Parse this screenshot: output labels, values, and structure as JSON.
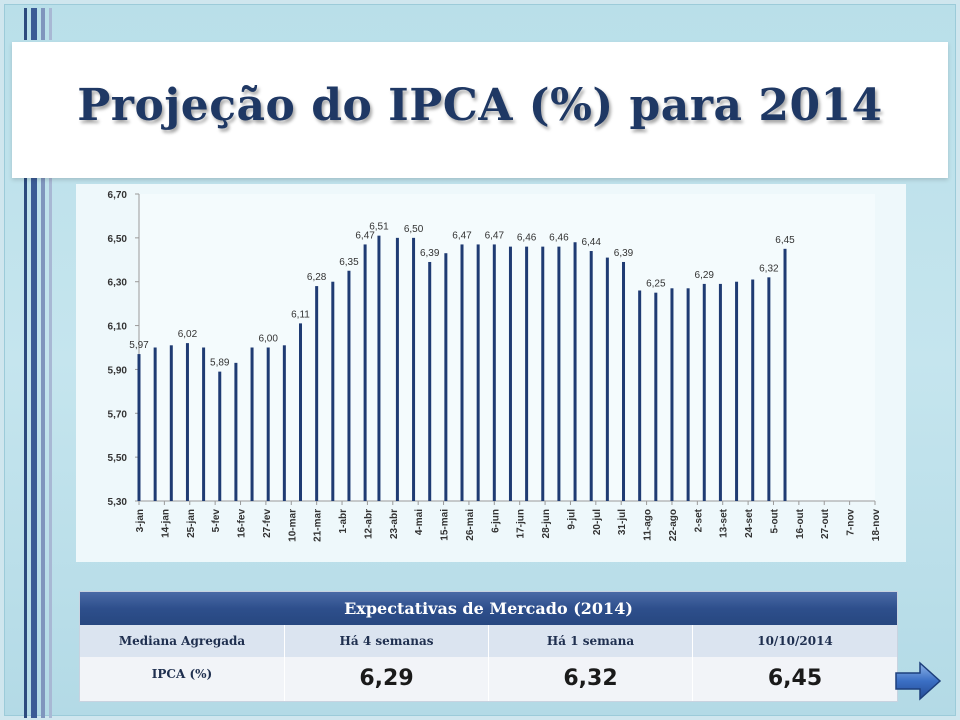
{
  "slide": {
    "title": "Projeção do IPCA (%) para 2014"
  },
  "chart_data": {
    "type": "bar",
    "title": "",
    "xlabel": "",
    "ylabel": "",
    "ylim": [
      5.3,
      6.7
    ],
    "y_ticks": [
      "5,30",
      "5,50",
      "5,70",
      "5,90",
      "6,10",
      "6,30",
      "6,50",
      "6,70"
    ],
    "grid": false,
    "x_tick_labels": [
      "3-jan",
      "14-jan",
      "25-jan",
      "5-fev",
      "16-fev",
      "27-fev",
      "10-mar",
      "21-mar",
      "1-abr",
      "12-abr",
      "23-abr",
      "4-mai",
      "15-mai",
      "26-mai",
      "6-jun",
      "17-jun",
      "28-jun",
      "9-jul",
      "20-jul",
      "31-jul",
      "11-ago",
      "22-ago",
      "2-set",
      "13-set",
      "24-set",
      "5-out",
      "16-out",
      "27-out",
      "7-nov",
      "18-nov"
    ],
    "x_start": "3-jan",
    "x_end": "18-nov",
    "bar_color": "#1f3b73",
    "bars": [
      {
        "date": "3-jan",
        "value": 5.97,
        "label": "5,97"
      },
      {
        "date": "10-jan",
        "value": 6.0
      },
      {
        "date": "17-jan",
        "value": 6.01
      },
      {
        "date": "24-jan",
        "value": 6.02,
        "label": "6,02"
      },
      {
        "date": "31-jan",
        "value": 6.0
      },
      {
        "date": "7-fev",
        "value": 5.89,
        "label": "5,89"
      },
      {
        "date": "14-fev",
        "value": 5.93
      },
      {
        "date": "21-fev",
        "value": 6.0
      },
      {
        "date": "28-fev",
        "value": 6.0,
        "label": "6,00"
      },
      {
        "date": "7-mar",
        "value": 6.01
      },
      {
        "date": "14-mar",
        "value": 6.11,
        "label": "6,11"
      },
      {
        "date": "21-mar",
        "value": 6.28,
        "label": "6,28"
      },
      {
        "date": "28-mar",
        "value": 6.3
      },
      {
        "date": "4-abr",
        "value": 6.35,
        "label": "6,35"
      },
      {
        "date": "11-abr",
        "value": 6.47,
        "label": "6,47"
      },
      {
        "date": "17-abr",
        "value": 6.51,
        "label": "6,51"
      },
      {
        "date": "25-abr",
        "value": 6.5
      },
      {
        "date": "2-mai",
        "value": 6.5,
        "label": "6,50"
      },
      {
        "date": "9-mai",
        "value": 6.39,
        "label": "6,39"
      },
      {
        "date": "16-mai",
        "value": 6.43
      },
      {
        "date": "23-mai",
        "value": 6.47,
        "label": "6,47"
      },
      {
        "date": "30-mai",
        "value": 6.47
      },
      {
        "date": "6-jun",
        "value": 6.47,
        "label": "6,47"
      },
      {
        "date": "13-jun",
        "value": 6.46
      },
      {
        "date": "20-jun",
        "value": 6.46,
        "label": "6,46"
      },
      {
        "date": "27-jun",
        "value": 6.46
      },
      {
        "date": "4-jul",
        "value": 6.46,
        "label": "6,46"
      },
      {
        "date": "11-jul",
        "value": 6.48
      },
      {
        "date": "18-jul",
        "value": 6.44,
        "label": "6,44"
      },
      {
        "date": "25-jul",
        "value": 6.41
      },
      {
        "date": "1-ago",
        "value": 6.39,
        "label": "6,39"
      },
      {
        "date": "8-ago",
        "value": 6.26
      },
      {
        "date": "15-ago",
        "value": 6.25,
        "label": "6,25"
      },
      {
        "date": "22-ago",
        "value": 6.27
      },
      {
        "date": "29-ago",
        "value": 6.27
      },
      {
        "date": "5-set",
        "value": 6.29,
        "label": "6,29"
      },
      {
        "date": "12-set",
        "value": 6.29
      },
      {
        "date": "19-set",
        "value": 6.3
      },
      {
        "date": "26-set",
        "value": 6.31
      },
      {
        "date": "3-out",
        "value": 6.32,
        "label": "6,32"
      },
      {
        "date": "10-out",
        "value": 6.45,
        "label": "6,45"
      }
    ]
  },
  "table": {
    "header": "Expectativas de Mercado (2014)",
    "columns": [
      "Mediana Agregada",
      "Há 4 semanas",
      "Há 1 semana",
      "10/10/2014"
    ],
    "row_label": "IPCA (%)",
    "values": [
      "6,29",
      "6,32",
      "6,45"
    ]
  },
  "colors": {
    "title": "#1f3864",
    "bar": "#1f3b73",
    "table_header": "#2e4f8c"
  },
  "nav": {
    "next_icon": "arrow-right-icon"
  }
}
